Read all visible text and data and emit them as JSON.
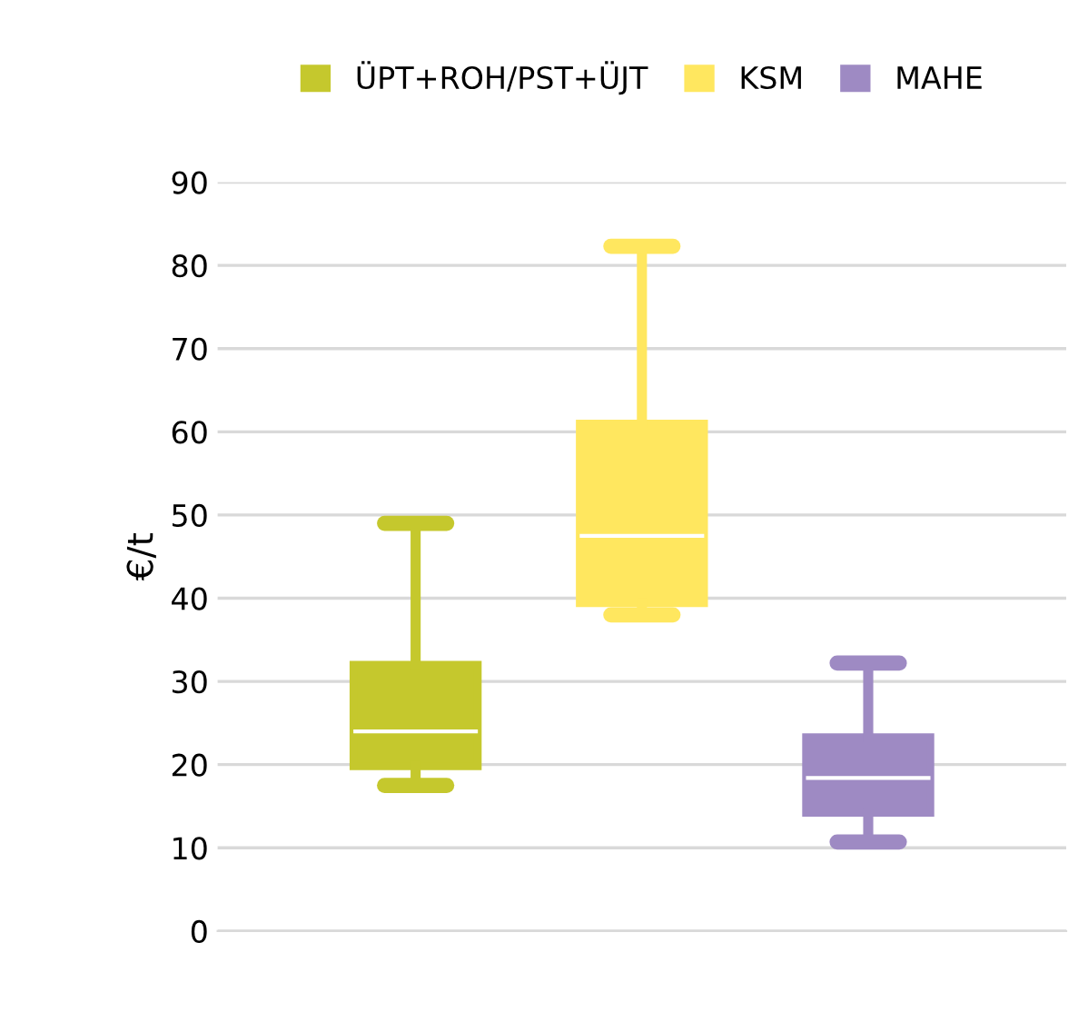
{
  "chart_data": {
    "type": "box",
    "ylabel": "€/t",
    "categories": [
      null
    ],
    "ylim": [
      0,
      90
    ],
    "yticks": [
      0,
      10,
      20,
      30,
      40,
      50,
      60,
      70,
      80,
      90
    ],
    "grid": "y",
    "legend": "top",
    "tick_labels": "y",
    "series": [
      {
        "name": "ÜPT+ROH/PST+ÜJT",
        "color": "#c5c82d",
        "boxes": [
          {
            "low": 17.5,
            "q1": 19.8,
            "median": 24,
            "q3": 32,
            "high": 49
          }
        ]
      },
      {
        "name": "KSM",
        "color": "#ffe75f",
        "boxes": [
          {
            "low": 38,
            "q1": 39.4,
            "median": 47.5,
            "q3": 61,
            "high": 82.3
          }
        ]
      },
      {
        "name": "MAHE",
        "color": "#9e8ac3",
        "boxes": [
          {
            "low": 10.7,
            "q1": 14.2,
            "median": 18.4,
            "q3": 23.3,
            "high": 32.2
          }
        ]
      }
    ]
  }
}
